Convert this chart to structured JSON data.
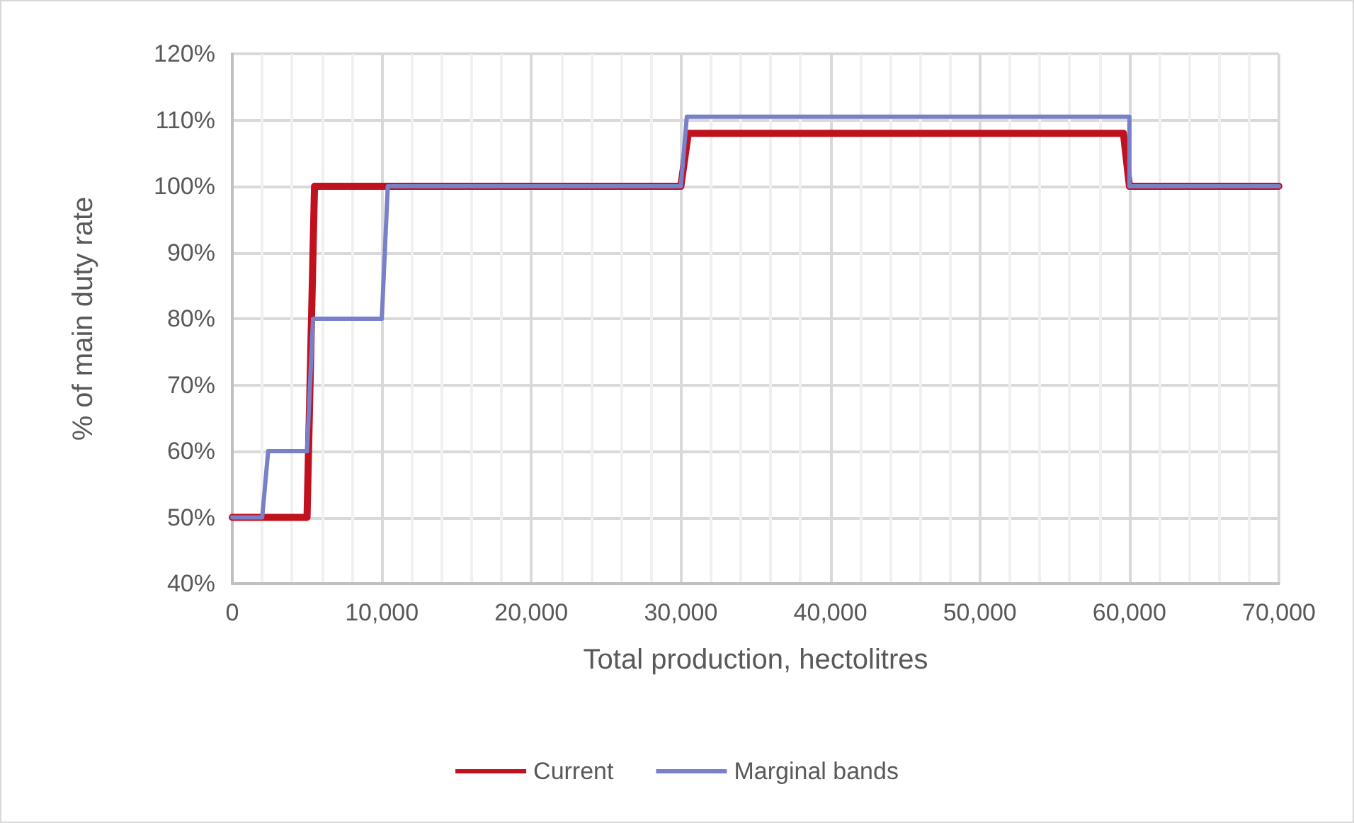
{
  "chart_data": {
    "type": "line",
    "xlabel": "Total production, hectolitres",
    "ylabel": "% of main duty rate",
    "xlim": [
      0,
      70000
    ],
    "xticks": [
      {
        "value": 0,
        "label": "0"
      },
      {
        "value": 10000,
        "label": "10,000"
      },
      {
        "value": 20000,
        "label": "20,000"
      },
      {
        "value": 30000,
        "label": "30,000"
      },
      {
        "value": 40000,
        "label": "40,000"
      },
      {
        "value": 50000,
        "label": "50,000"
      },
      {
        "value": 60000,
        "label": "60,000"
      },
      {
        "value": 70000,
        "label": "70,000"
      }
    ],
    "ylim": [
      40,
      120
    ],
    "yticks": [
      {
        "value": 40,
        "label": "40%"
      },
      {
        "value": 50,
        "label": "50%"
      },
      {
        "value": 60,
        "label": "60%"
      },
      {
        "value": 70,
        "label": "70%"
      },
      {
        "value": 80,
        "label": "80%"
      },
      {
        "value": 90,
        "label": "90%"
      },
      {
        "value": 100,
        "label": "100%"
      },
      {
        "value": 110,
        "label": "110%"
      },
      {
        "value": 120,
        "label": "120%"
      }
    ],
    "grid": true,
    "legend": "bottom",
    "marker": "none",
    "line_style": "solid",
    "series": [
      {
        "name": "Current",
        "color": "#c0111f",
        "x": [
          0,
          5000,
          5500,
          30000,
          30500,
          59600,
          60000,
          70000
        ],
        "values": [
          50,
          50,
          100,
          100,
          108,
          108,
          100,
          100
        ]
      },
      {
        "name": "Marginal bands",
        "color": "#7880c8",
        "x": [
          0,
          2000,
          2400,
          5000,
          5400,
          10000,
          10400,
          30000,
          30400,
          60000,
          60000,
          70000
        ],
        "values": [
          50,
          50,
          60,
          60,
          80,
          80,
          100,
          100,
          110.5,
          110.5,
          100,
          100
        ]
      }
    ]
  }
}
